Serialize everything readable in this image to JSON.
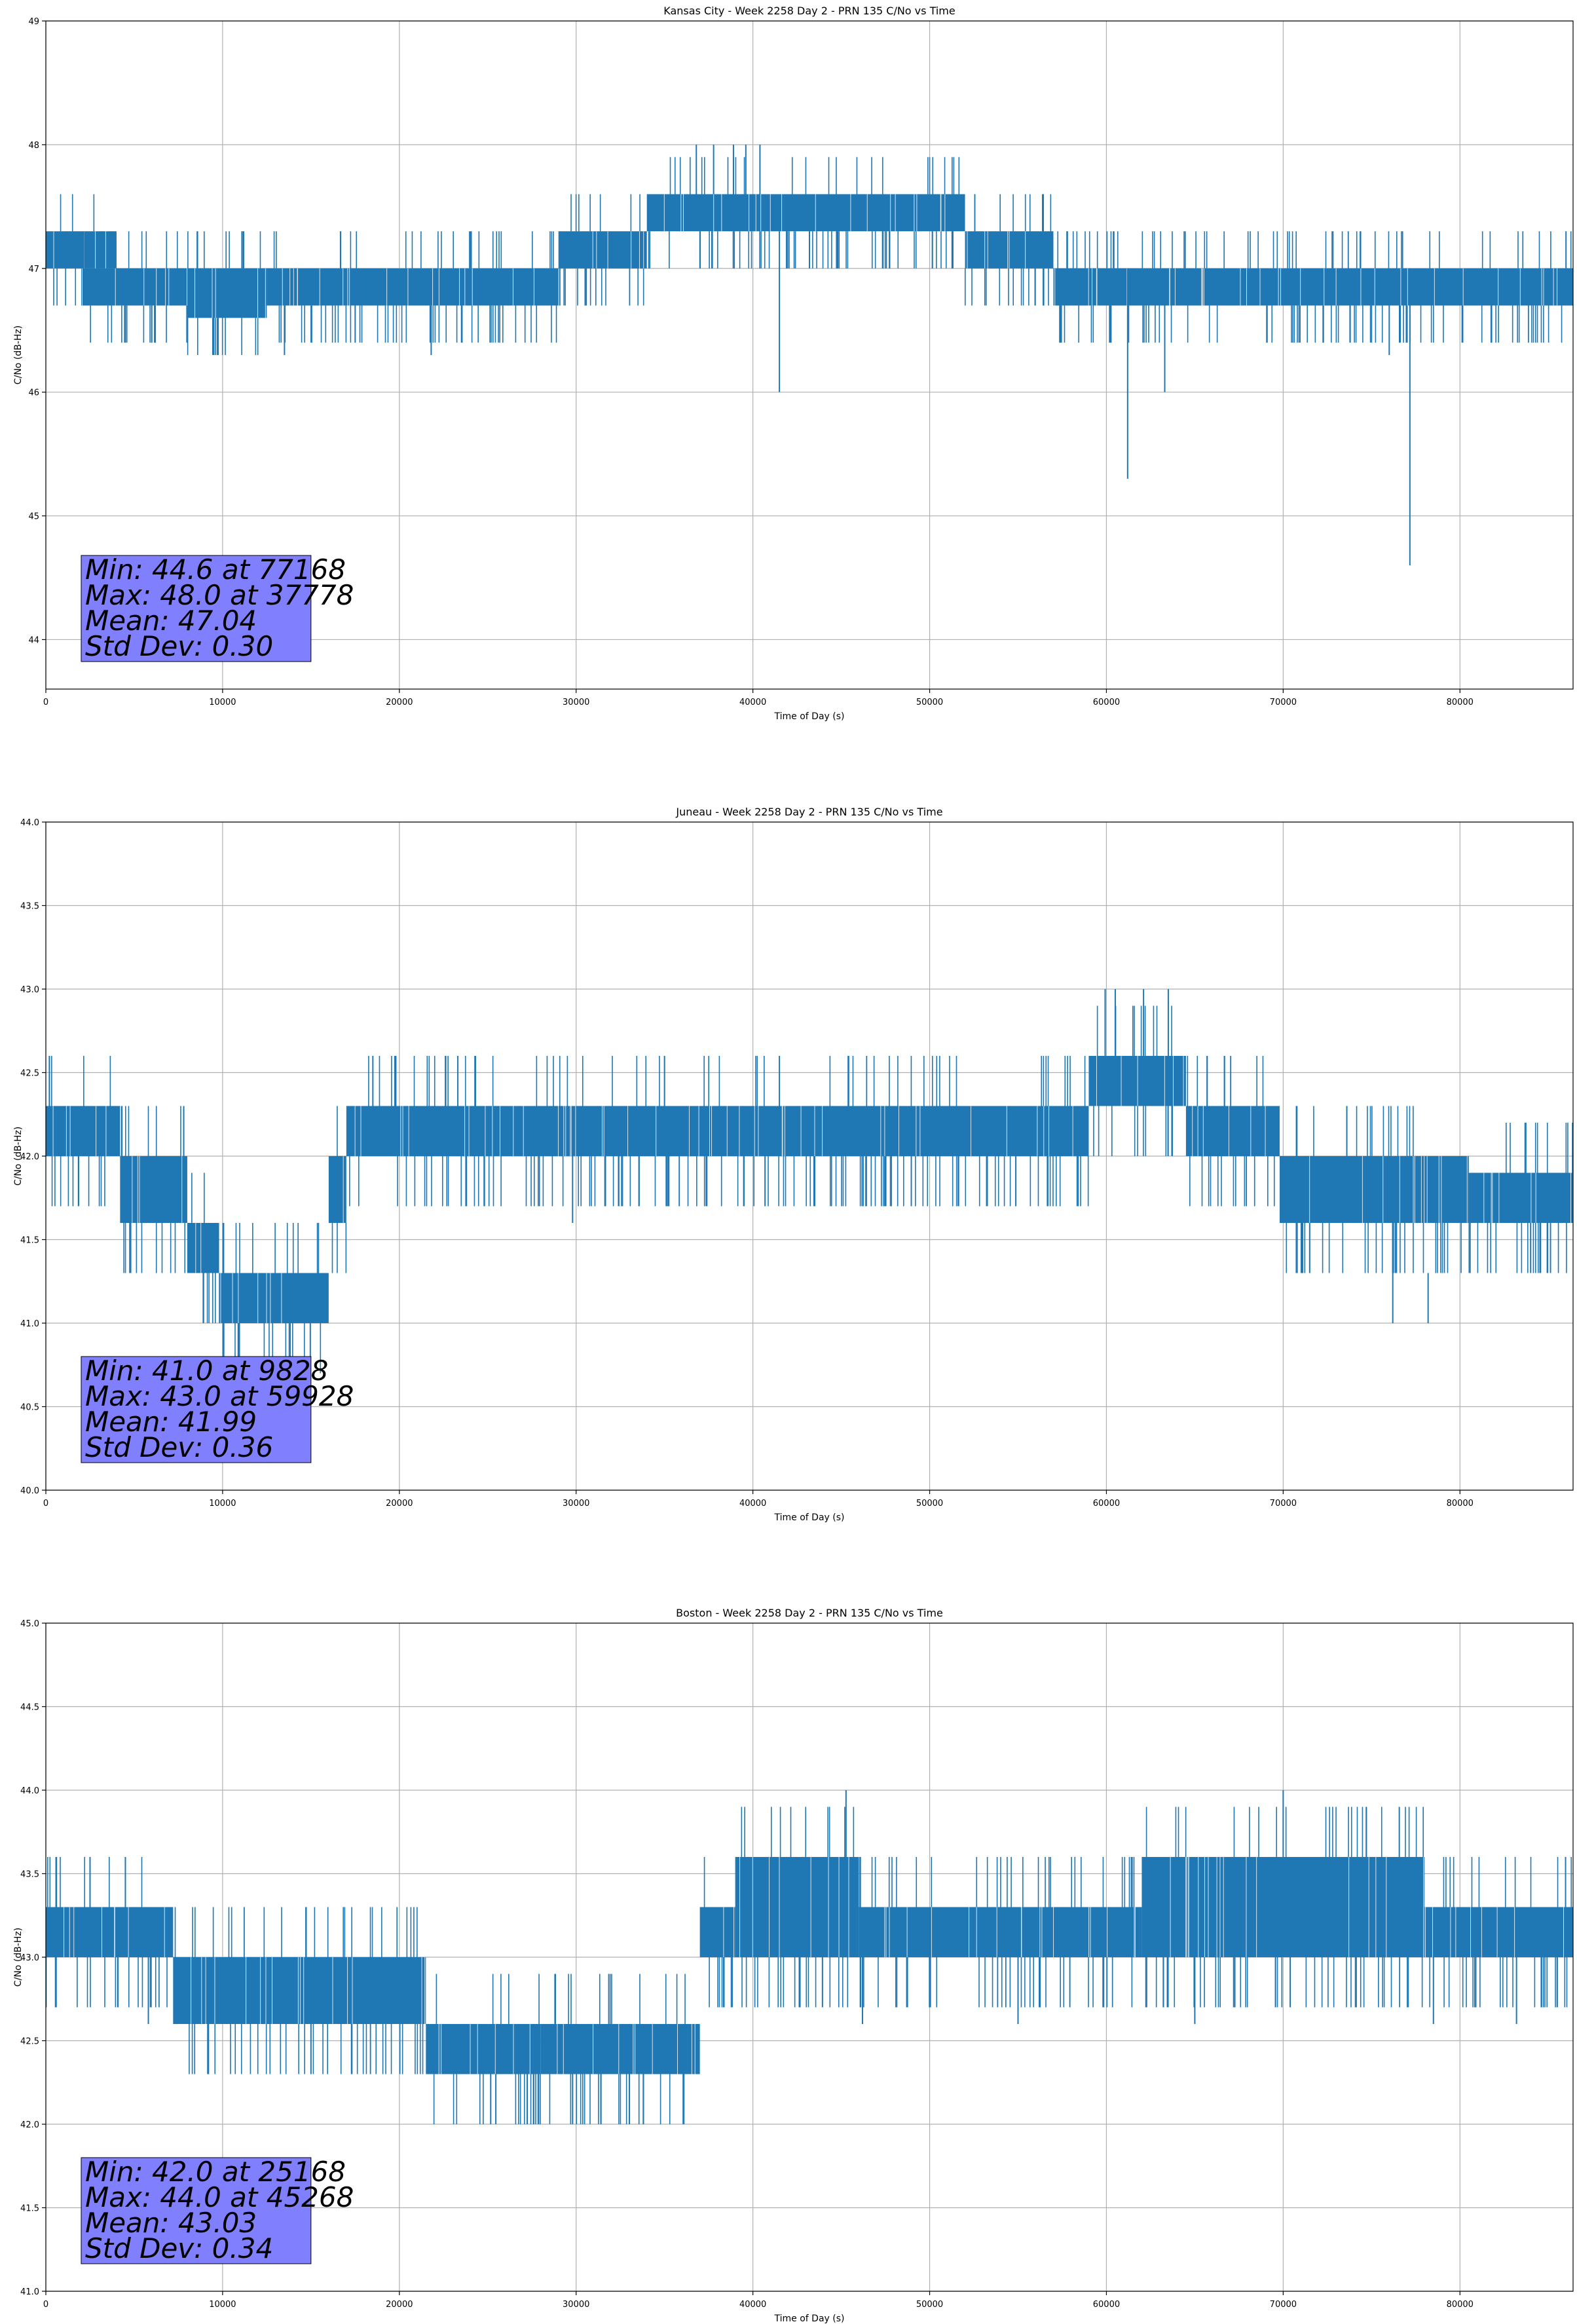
{
  "figure": {
    "line_color": "#1f77b4",
    "stats_box_color": "#8080ff",
    "grid_color": "#b0b0b0"
  },
  "chart_data": [
    {
      "type": "line",
      "title": "Kansas City - Week 2258 Day 2 - PRN 135 C/No vs Time",
      "xlabel": "Time of Day (s)",
      "ylabel": "C/No (dB-Hz)",
      "xlim": [
        0,
        86400
      ],
      "ylim": [
        43.6,
        49.0
      ],
      "xticks": [
        0,
        10000,
        20000,
        30000,
        40000,
        50000,
        60000,
        70000,
        80000
      ],
      "yticks": [
        44,
        45,
        46,
        47,
        48,
        49
      ],
      "yprec": 0,
      "grid": true,
      "stats": [
        "Min: 44.6 at 77168",
        "Max: 48.0 at 37778",
        "Mean: 47.04",
        "Std Dev: 0.30"
      ],
      "band_segments": [
        {
          "x0": 0,
          "x1": 4000,
          "lo": 47.0,
          "hi": 47.3
        },
        {
          "x0": 2000,
          "x1": 8000,
          "lo": 46.7,
          "hi": 47.0
        },
        {
          "x0": 8000,
          "x1": 12500,
          "lo": 46.6,
          "hi": 47.0
        },
        {
          "x0": 12500,
          "x1": 29000,
          "lo": 46.7,
          "hi": 47.0
        },
        {
          "x0": 29000,
          "x1": 34000,
          "lo": 47.0,
          "hi": 47.3
        },
        {
          "x0": 34000,
          "x1": 52000,
          "lo": 47.3,
          "hi": 47.6
        },
        {
          "x0": 52000,
          "x1": 57000,
          "lo": 47.0,
          "hi": 47.3
        },
        {
          "x0": 57000,
          "x1": 86400,
          "lo": 46.7,
          "hi": 47.0
        }
      ],
      "spikes": [
        {
          "x": 1200,
          "lo": 47.0,
          "hi": 47.3
        },
        {
          "x": 9500,
          "lo": 46.3,
          "hi": 46.7
        },
        {
          "x": 13500,
          "lo": 46.3,
          "hi": 46.7
        },
        {
          "x": 17500,
          "lo": 46.4,
          "hi": 46.7
        },
        {
          "x": 21800,
          "lo": 46.3,
          "hi": 46.7
        },
        {
          "x": 36800,
          "lo": 47.6,
          "hi": 48.0
        },
        {
          "x": 37778,
          "lo": 47.6,
          "hi": 48.0
        },
        {
          "x": 38900,
          "lo": 47.6,
          "hi": 48.0
        },
        {
          "x": 39600,
          "lo": 47.6,
          "hi": 48.0
        },
        {
          "x": 40400,
          "lo": 47.6,
          "hi": 48.0
        },
        {
          "x": 41500,
          "lo": 46.0,
          "hi": 47.3
        },
        {
          "x": 43200,
          "lo": 47.0,
          "hi": 47.3
        },
        {
          "x": 61200,
          "lo": 45.3,
          "hi": 47.0
        },
        {
          "x": 63300,
          "lo": 46.0,
          "hi": 47.0
        },
        {
          "x": 76000,
          "lo": 46.3,
          "hi": 46.7
        },
        {
          "x": 77168,
          "lo": 44.6,
          "hi": 47.0
        },
        {
          "x": 86000,
          "lo": 47.0,
          "hi": 47.3
        }
      ]
    },
    {
      "type": "line",
      "title": "Juneau - Week 2258 Day 2 - PRN 135 C/No vs Time",
      "xlabel": "Time of Day (s)",
      "ylabel": "C/No (dB-Hz)",
      "xlim": [
        0,
        86400
      ],
      "ylim": [
        40.0,
        44.0
      ],
      "xticks": [
        0,
        10000,
        20000,
        30000,
        40000,
        50000,
        60000,
        70000,
        80000
      ],
      "yticks": [
        40.0,
        40.5,
        41.0,
        41.5,
        42.0,
        42.5,
        43.0,
        43.5,
        44.0
      ],
      "yprec": 1,
      "grid": true,
      "stats": [
        "Min: 41.0 at 9828",
        "Max: 43.0 at 59928",
        "Mean: 41.99",
        "Std Dev: 0.36"
      ],
      "band_segments": [
        {
          "x0": 0,
          "x1": 4200,
          "lo": 42.0,
          "hi": 42.3
        },
        {
          "x0": 4200,
          "x1": 8000,
          "lo": 41.6,
          "hi": 42.0
        },
        {
          "x0": 8000,
          "x1": 9800,
          "lo": 41.3,
          "hi": 41.6
        },
        {
          "x0": 9800,
          "x1": 16000,
          "lo": 41.0,
          "hi": 41.3
        },
        {
          "x0": 16000,
          "x1": 17000,
          "lo": 41.6,
          "hi": 42.0
        },
        {
          "x0": 17000,
          "x1": 59000,
          "lo": 42.0,
          "hi": 42.3
        },
        {
          "x0": 59000,
          "x1": 64500,
          "lo": 42.3,
          "hi": 42.6
        },
        {
          "x0": 64500,
          "x1": 69800,
          "lo": 42.0,
          "hi": 42.3
        },
        {
          "x0": 69800,
          "x1": 80500,
          "lo": 41.6,
          "hi": 42.0
        },
        {
          "x0": 80500,
          "x1": 86400,
          "lo": 41.6,
          "hi": 41.9
        }
      ],
      "spikes": [
        {
          "x": 200,
          "lo": 42.3,
          "hi": 42.6
        },
        {
          "x": 4800,
          "lo": 41.3,
          "hi": 41.6
        },
        {
          "x": 9828,
          "lo": 41.0,
          "hi": 41.3
        },
        {
          "x": 18500,
          "lo": 42.3,
          "hi": 42.6
        },
        {
          "x": 19800,
          "lo": 42.3,
          "hi": 42.6
        },
        {
          "x": 29800,
          "lo": 41.6,
          "hi": 42.0
        },
        {
          "x": 35000,
          "lo": 42.3,
          "hi": 42.6
        },
        {
          "x": 41500,
          "lo": 42.3,
          "hi": 42.6
        },
        {
          "x": 59928,
          "lo": 42.6,
          "hi": 43.0
        },
        {
          "x": 60500,
          "lo": 42.6,
          "hi": 43.0
        },
        {
          "x": 62100,
          "lo": 42.6,
          "hi": 43.0
        },
        {
          "x": 63500,
          "lo": 42.6,
          "hi": 43.0
        },
        {
          "x": 71500,
          "lo": 41.3,
          "hi": 41.6
        },
        {
          "x": 76200,
          "lo": 41.0,
          "hi": 41.3
        },
        {
          "x": 78200,
          "lo": 41.0,
          "hi": 41.3
        },
        {
          "x": 84000,
          "lo": 41.3,
          "hi": 41.6
        }
      ]
    },
    {
      "type": "line",
      "title": "Boston - Week 2258 Day 2 - PRN 135 C/No vs Time",
      "xlabel": "Time of Day (s)",
      "ylabel": "C/No (dB-Hz)",
      "xlim": [
        0,
        86400
      ],
      "ylim": [
        41.0,
        45.0
      ],
      "xticks": [
        0,
        10000,
        20000,
        30000,
        40000,
        50000,
        60000,
        70000,
        80000
      ],
      "yticks": [
        41.0,
        41.5,
        42.0,
        42.5,
        43.0,
        43.5,
        44.0,
        44.5,
        45.0
      ],
      "yprec": 1,
      "grid": true,
      "stats": [
        "Min: 42.0 at 25168",
        "Max: 44.0 at 45268",
        "Mean: 43.03",
        "Std Dev: 0.34"
      ],
      "band_segments": [
        {
          "x0": 0,
          "x1": 7200,
          "lo": 43.0,
          "hi": 43.3
        },
        {
          "x0": 7200,
          "x1": 21500,
          "lo": 42.6,
          "hi": 43.0
        },
        {
          "x0": 21500,
          "x1": 28000,
          "lo": 42.3,
          "hi": 42.6
        },
        {
          "x0": 28000,
          "x1": 37000,
          "lo": 42.3,
          "hi": 42.6
        },
        {
          "x0": 37000,
          "x1": 39000,
          "lo": 43.0,
          "hi": 43.3
        },
        {
          "x0": 39000,
          "x1": 46000,
          "lo": 43.0,
          "hi": 43.6
        },
        {
          "x0": 46000,
          "x1": 62000,
          "lo": 43.0,
          "hi": 43.3
        },
        {
          "x0": 62000,
          "x1": 78000,
          "lo": 43.0,
          "hi": 43.6
        },
        {
          "x0": 78000,
          "x1": 86400,
          "lo": 43.0,
          "hi": 43.3
        }
      ],
      "spikes": [
        {
          "x": 600,
          "lo": 43.3,
          "hi": 43.6
        },
        {
          "x": 2500,
          "lo": 43.3,
          "hi": 43.6
        },
        {
          "x": 4500,
          "lo": 43.3,
          "hi": 43.6
        },
        {
          "x": 5800,
          "lo": 42.6,
          "hi": 43.0
        },
        {
          "x": 9200,
          "lo": 42.3,
          "hi": 42.6
        },
        {
          "x": 15000,
          "lo": 42.3,
          "hi": 42.6
        },
        {
          "x": 25168,
          "lo": 42.0,
          "hi": 42.3
        },
        {
          "x": 27600,
          "lo": 42.0,
          "hi": 42.3
        },
        {
          "x": 29800,
          "lo": 42.0,
          "hi": 42.3
        },
        {
          "x": 31400,
          "lo": 42.0,
          "hi": 42.3
        },
        {
          "x": 45268,
          "lo": 43.6,
          "hi": 44.0
        },
        {
          "x": 46200,
          "lo": 42.6,
          "hi": 43.0
        },
        {
          "x": 55000,
          "lo": 42.6,
          "hi": 43.0
        },
        {
          "x": 65000,
          "lo": 42.6,
          "hi": 43.0
        },
        {
          "x": 70000,
          "lo": 43.6,
          "hi": 44.0
        },
        {
          "x": 78500,
          "lo": 42.6,
          "hi": 43.0
        },
        {
          "x": 83200,
          "lo": 42.6,
          "hi": 43.0
        }
      ]
    }
  ]
}
